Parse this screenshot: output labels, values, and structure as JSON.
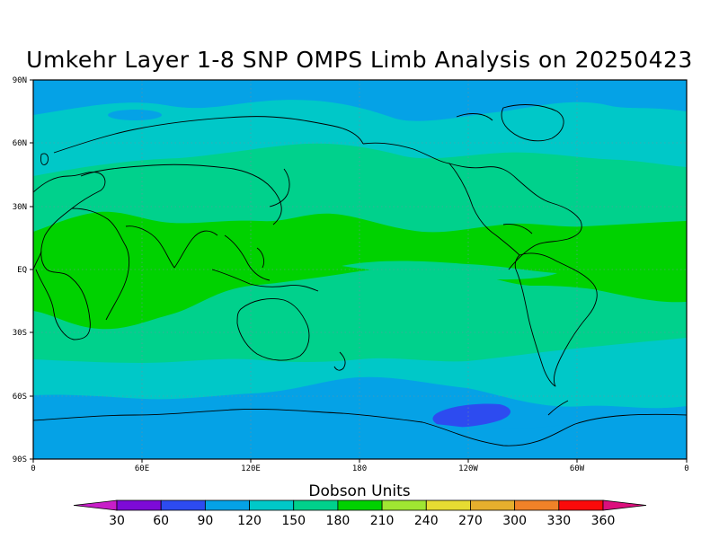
{
  "title": "Umkehr Layer 1-8 SNP OMPS Limb Analysis on 20250423",
  "map": {
    "lat_labels": [
      "90N",
      "60N",
      "30N",
      "EQ",
      "30S",
      "60S",
      "90S"
    ],
    "lon_labels": [
      "0",
      "60E",
      "120E",
      "180",
      "120W",
      "60W",
      "0"
    ],
    "background_color": "#05a2e6"
  },
  "colorbar": {
    "title": "Dobson Units",
    "levels": [
      "30",
      "60",
      "90",
      "120",
      "150",
      "180",
      "210",
      "240",
      "270",
      "300",
      "330",
      "360"
    ],
    "colors": [
      "#c81ec8",
      "#7d0ad7",
      "#2d4bf0",
      "#05a2e6",
      "#00c8c8",
      "#00d18c",
      "#00d200",
      "#a0e632",
      "#e6dc32",
      "#e6af2d",
      "#f08228",
      "#fa0a0a",
      "#dc0f7d"
    ]
  },
  "zones": {
    "lowest": "#2d4bf0",
    "low": "#05a2e6",
    "mid": "#00c8c8",
    "high": "#00d18c",
    "highest": "#00d200",
    "land": "#000000"
  }
}
